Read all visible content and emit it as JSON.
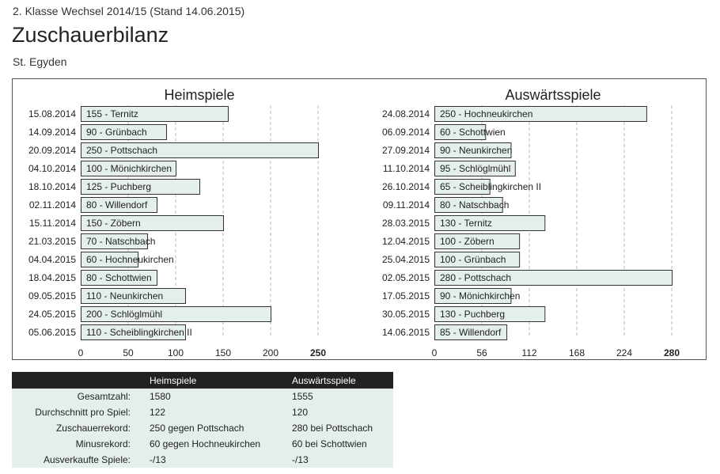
{
  "header": {
    "league": "2. Klasse Wechsel 2014/15 (Stand 14.06.2015)",
    "title": "Zuschauerbilanz",
    "club": "St. Egyden"
  },
  "colors": {
    "bar_fill": "#e5efe9",
    "bar_stroke": "#333333",
    "grid": "#bbbbbb",
    "table_head": "#222222",
    "table_body": "#e5efe9"
  },
  "chart_data": [
    {
      "type": "bar",
      "orientation": "horizontal",
      "title": "Heimspiele",
      "xlim": [
        0,
        250
      ],
      "ticks": [
        0,
        50,
        100,
        150,
        200,
        250
      ],
      "grid": true,
      "dates": [
        "15.08.2014",
        "14.09.2014",
        "20.09.2014",
        "04.10.2014",
        "18.10.2014",
        "02.11.2014",
        "15.11.2014",
        "21.03.2015",
        "04.04.2015",
        "18.04.2015",
        "09.05.2015",
        "24.05.2015",
        "05.06.2015"
      ],
      "opponents": [
        "Ternitz",
        "Grünbach",
        "Pottschach",
        "Mönichkirchen",
        "Puchberg",
        "Willendorf",
        "Zöbern",
        "Natschbach",
        "Hochneukirchen",
        "Schottwien",
        "Neunkirchen",
        "Schlöglmühl",
        "Scheiblingkirchen II"
      ],
      "values": [
        155,
        90,
        250,
        100,
        125,
        80,
        150,
        70,
        60,
        80,
        110,
        200,
        110
      ]
    },
    {
      "type": "bar",
      "orientation": "horizontal",
      "title": "Auswärtsspiele",
      "xlim": [
        0,
        280
      ],
      "ticks": [
        0,
        56,
        112,
        168,
        224,
        280
      ],
      "grid": true,
      "dates": [
        "24.08.2014",
        "06.09.2014",
        "27.09.2014",
        "11.10.2014",
        "26.10.2014",
        "09.11.2014",
        "28.03.2015",
        "12.04.2015",
        "25.04.2015",
        "02.05.2015",
        "17.05.2015",
        "30.05.2015",
        "14.06.2015"
      ],
      "opponents": [
        "Hochneukirchen",
        "Schottwien",
        "Neunkirchen",
        "Schlöglmühl",
        "Scheiblingkirchen II",
        "Natschbach",
        "Ternitz",
        "Zöbern",
        "Grünbach",
        "Pottschach",
        "Mönichkirchen",
        "Puchberg",
        "Willendorf"
      ],
      "values": [
        250,
        60,
        90,
        95,
        65,
        80,
        130,
        100,
        100,
        280,
        90,
        130,
        85
      ]
    }
  ],
  "stats": {
    "columns": [
      "Heimspiele",
      "Auswärtsspiele"
    ],
    "rows": [
      {
        "label": "Gesamtzahl:",
        "home": "1580",
        "away": "1555"
      },
      {
        "label": "Durchschnitt pro Spiel:",
        "home": "122",
        "away": "120"
      },
      {
        "label": "Zuschauerrekord:",
        "home": "250 gegen Pottschach",
        "away": "280 bei Pottschach"
      },
      {
        "label": "Minusrekord:",
        "home": "60 gegen Hochneukirchen",
        "away": "60 bei Schottwien"
      },
      {
        "label": "Ausverkaufte Spiele:",
        "home": "-/13",
        "away": "-/13"
      }
    ]
  }
}
